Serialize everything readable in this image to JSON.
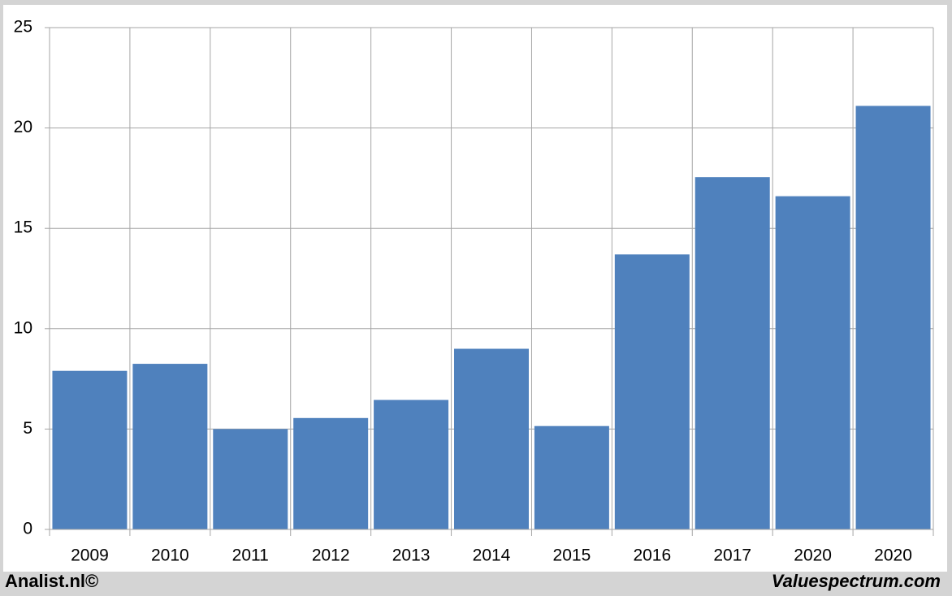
{
  "chart_data": {
    "type": "bar",
    "categories": [
      "2009",
      "2010",
      "2011",
      "2012",
      "2013",
      "2014",
      "2015",
      "2016",
      "2017",
      "2020",
      "2020"
    ],
    "values": [
      7.9,
      8.25,
      5.0,
      5.55,
      6.45,
      9.0,
      5.15,
      13.7,
      17.55,
      16.6,
      21.1
    ],
    "color": "#4f81bd",
    "ylim": [
      0,
      25
    ],
    "yticks": [
      0,
      5,
      10,
      15,
      20,
      25
    ],
    "grid": true
  },
  "footer": {
    "left": "Analist.nl©",
    "right": "Valuespectrum.com"
  }
}
